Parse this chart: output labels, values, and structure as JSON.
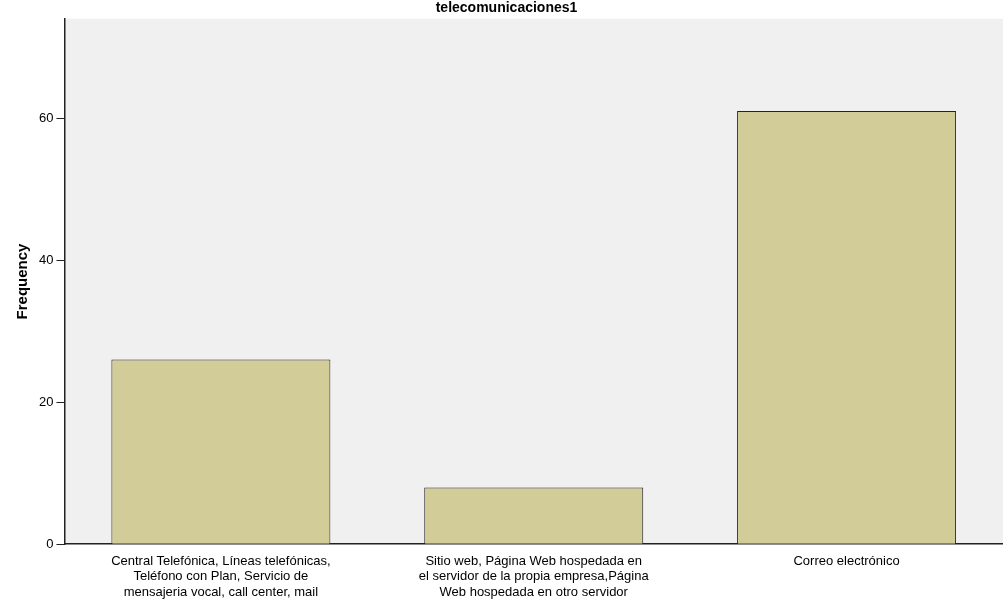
{
  "chart_data": {
    "type": "bar",
    "title": "telecomunicaciones1",
    "ylabel": "Frequency",
    "categories": [
      "Central Telefónica, Líneas telefónicas, Teléfono con Plan, Servicio de mensajeria vocal, call center, mail",
      "Sitio web, Página Web hospedada en el servidor de la propia empresa,Página Web hospedada en otro servidor",
      "Correo electrónico"
    ],
    "values": [
      26,
      8,
      61
    ],
    "color": "#d2cc98",
    "ylim": [
      0,
      74
    ],
    "yticks": [
      0,
      20,
      40,
      60
    ],
    "grid": false,
    "legend": false
  }
}
